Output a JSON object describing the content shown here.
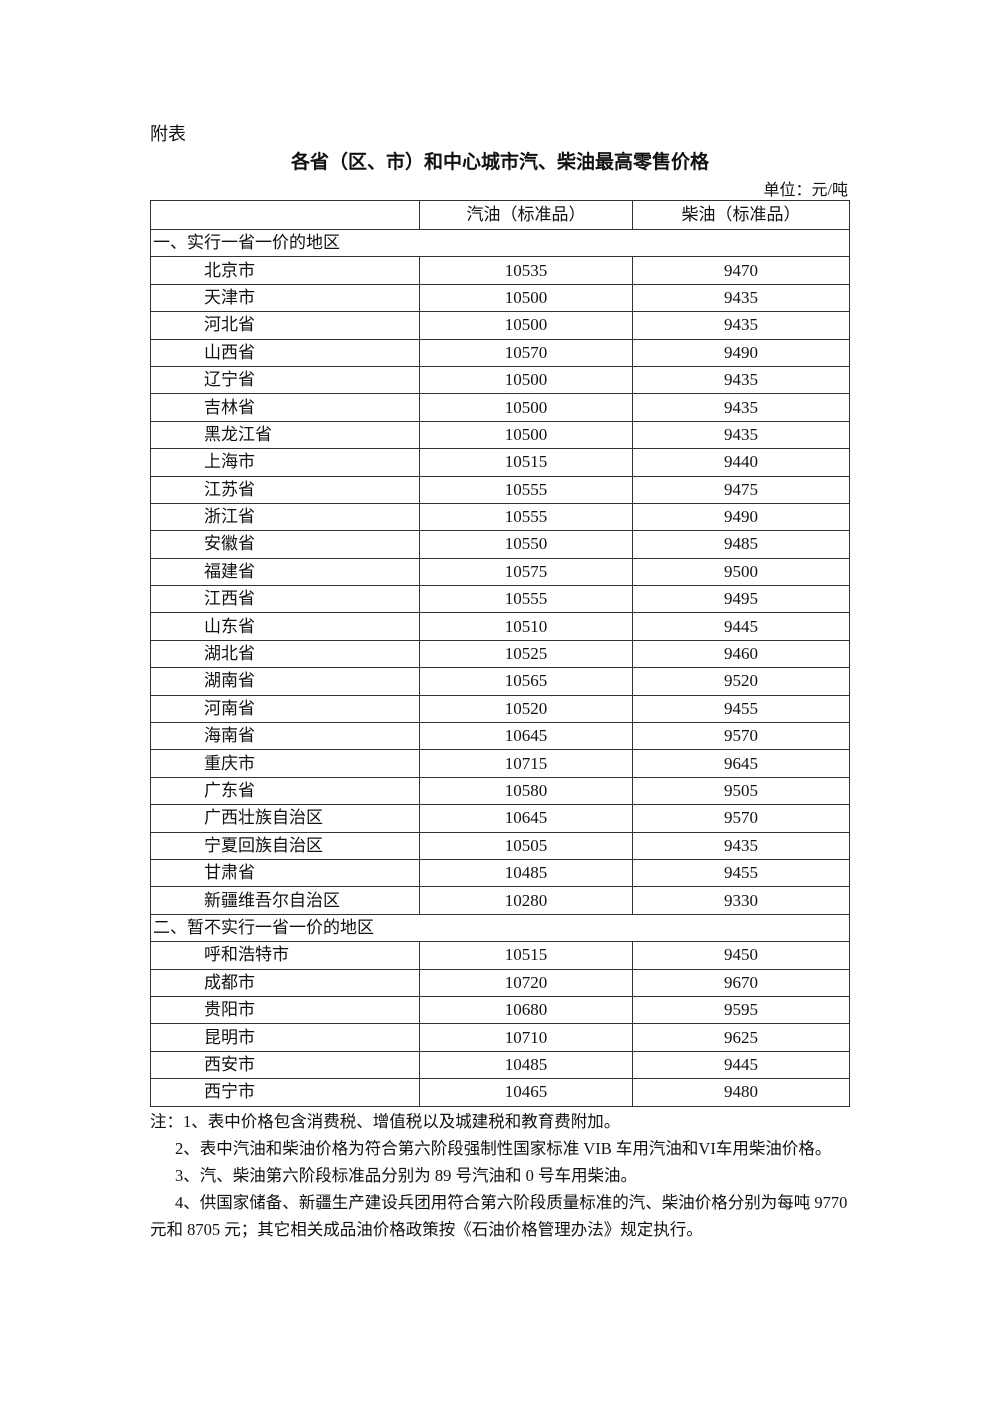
{
  "attachment_label": "附表",
  "title": "各省（区、市）和中心城市汽、柴油最高零售价格",
  "unit": "单位：元/吨",
  "table": {
    "headers": [
      "",
      "汽油（标准品）",
      "柴油（标准品）"
    ],
    "sections": [
      {
        "label": "一、实行一省一价的地区",
        "rows": [
          [
            "北京市",
            "10535",
            "9470"
          ],
          [
            "天津市",
            "10500",
            "9435"
          ],
          [
            "河北省",
            "10500",
            "9435"
          ],
          [
            "山西省",
            "10570",
            "9490"
          ],
          [
            "辽宁省",
            "10500",
            "9435"
          ],
          [
            "吉林省",
            "10500",
            "9435"
          ],
          [
            "黑龙江省",
            "10500",
            "9435"
          ],
          [
            "上海市",
            "10515",
            "9440"
          ],
          [
            "江苏省",
            "10555",
            "9475"
          ],
          [
            "浙江省",
            "10555",
            "9490"
          ],
          [
            "安徽省",
            "10550",
            "9485"
          ],
          [
            "福建省",
            "10575",
            "9500"
          ],
          [
            "江西省",
            "10555",
            "9495"
          ],
          [
            "山东省",
            "10510",
            "9445"
          ],
          [
            "湖北省",
            "10525",
            "9460"
          ],
          [
            "湖南省",
            "10565",
            "9520"
          ],
          [
            "河南省",
            "10520",
            "9455"
          ],
          [
            "海南省",
            "10645",
            "9570"
          ],
          [
            "重庆市",
            "10715",
            "9645"
          ],
          [
            "广东省",
            "10580",
            "9505"
          ],
          [
            "广西壮族自治区",
            "10645",
            "9570"
          ],
          [
            "宁夏回族自治区",
            "10505",
            "9435"
          ],
          [
            "甘肃省",
            "10485",
            "9455"
          ],
          [
            "新疆维吾尔自治区",
            "10280",
            "9330"
          ]
        ]
      },
      {
        "label": "二、暂不实行一省一价的地区",
        "rows": [
          [
            "呼和浩特市",
            "10515",
            "9450"
          ],
          [
            "成都市",
            "10720",
            "9670"
          ],
          [
            "贵阳市",
            "10680",
            "9595"
          ],
          [
            "昆明市",
            "10710",
            "9625"
          ],
          [
            "西安市",
            "10485",
            "9445"
          ],
          [
            "西宁市",
            "10465",
            "9480"
          ]
        ]
      }
    ]
  },
  "notes": [
    "注：1、表中价格包含消费税、增值税以及城建税和教育费附加。",
    "2、表中汽油和柴油价格为符合第六阶段强制性国家标准 VIB 车用汽油和VI车用柴油价格。",
    "3、汽、柴油第六阶段标准品分别为 89 号汽油和 0 号车用柴油。",
    "4、供国家储备、新疆生产建设兵团用符合第六阶段质量标准的汽、柴油价格分别为每吨 9770 元和 8705 元；其它相关成品油价格政策按《石油价格管理办法》规定执行。"
  ]
}
